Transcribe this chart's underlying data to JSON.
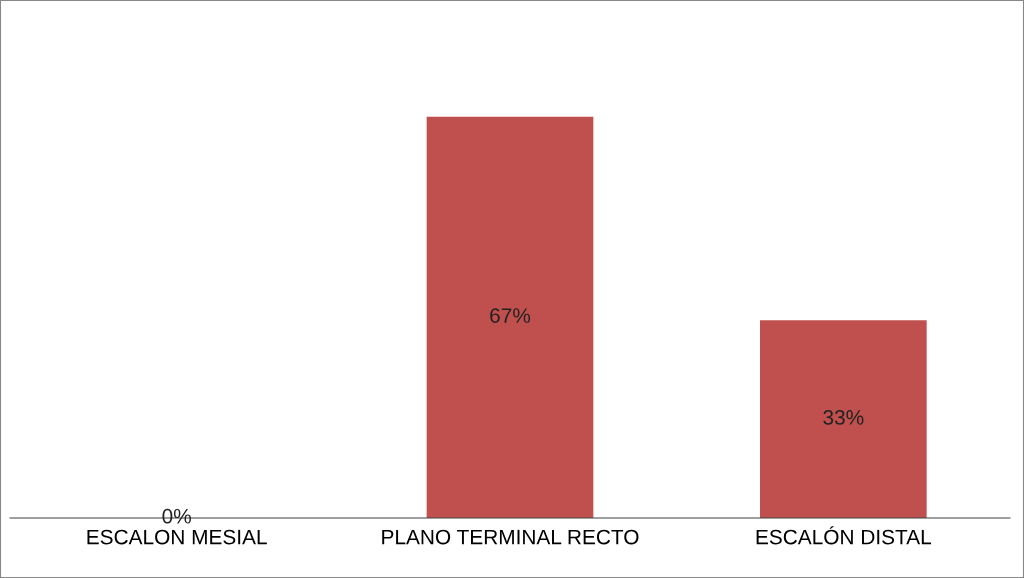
{
  "chart_data": {
    "type": "bar",
    "categories": [
      "ESCALON MESIAL",
      "PLANO TERMINAL RECTO",
      "ESCALÓN DISTAL"
    ],
    "values": [
      0,
      67,
      33
    ],
    "value_labels": [
      "0%",
      "67%",
      "33%"
    ],
    "color": "#c0504d",
    "grid": false,
    "legend": false
  }
}
